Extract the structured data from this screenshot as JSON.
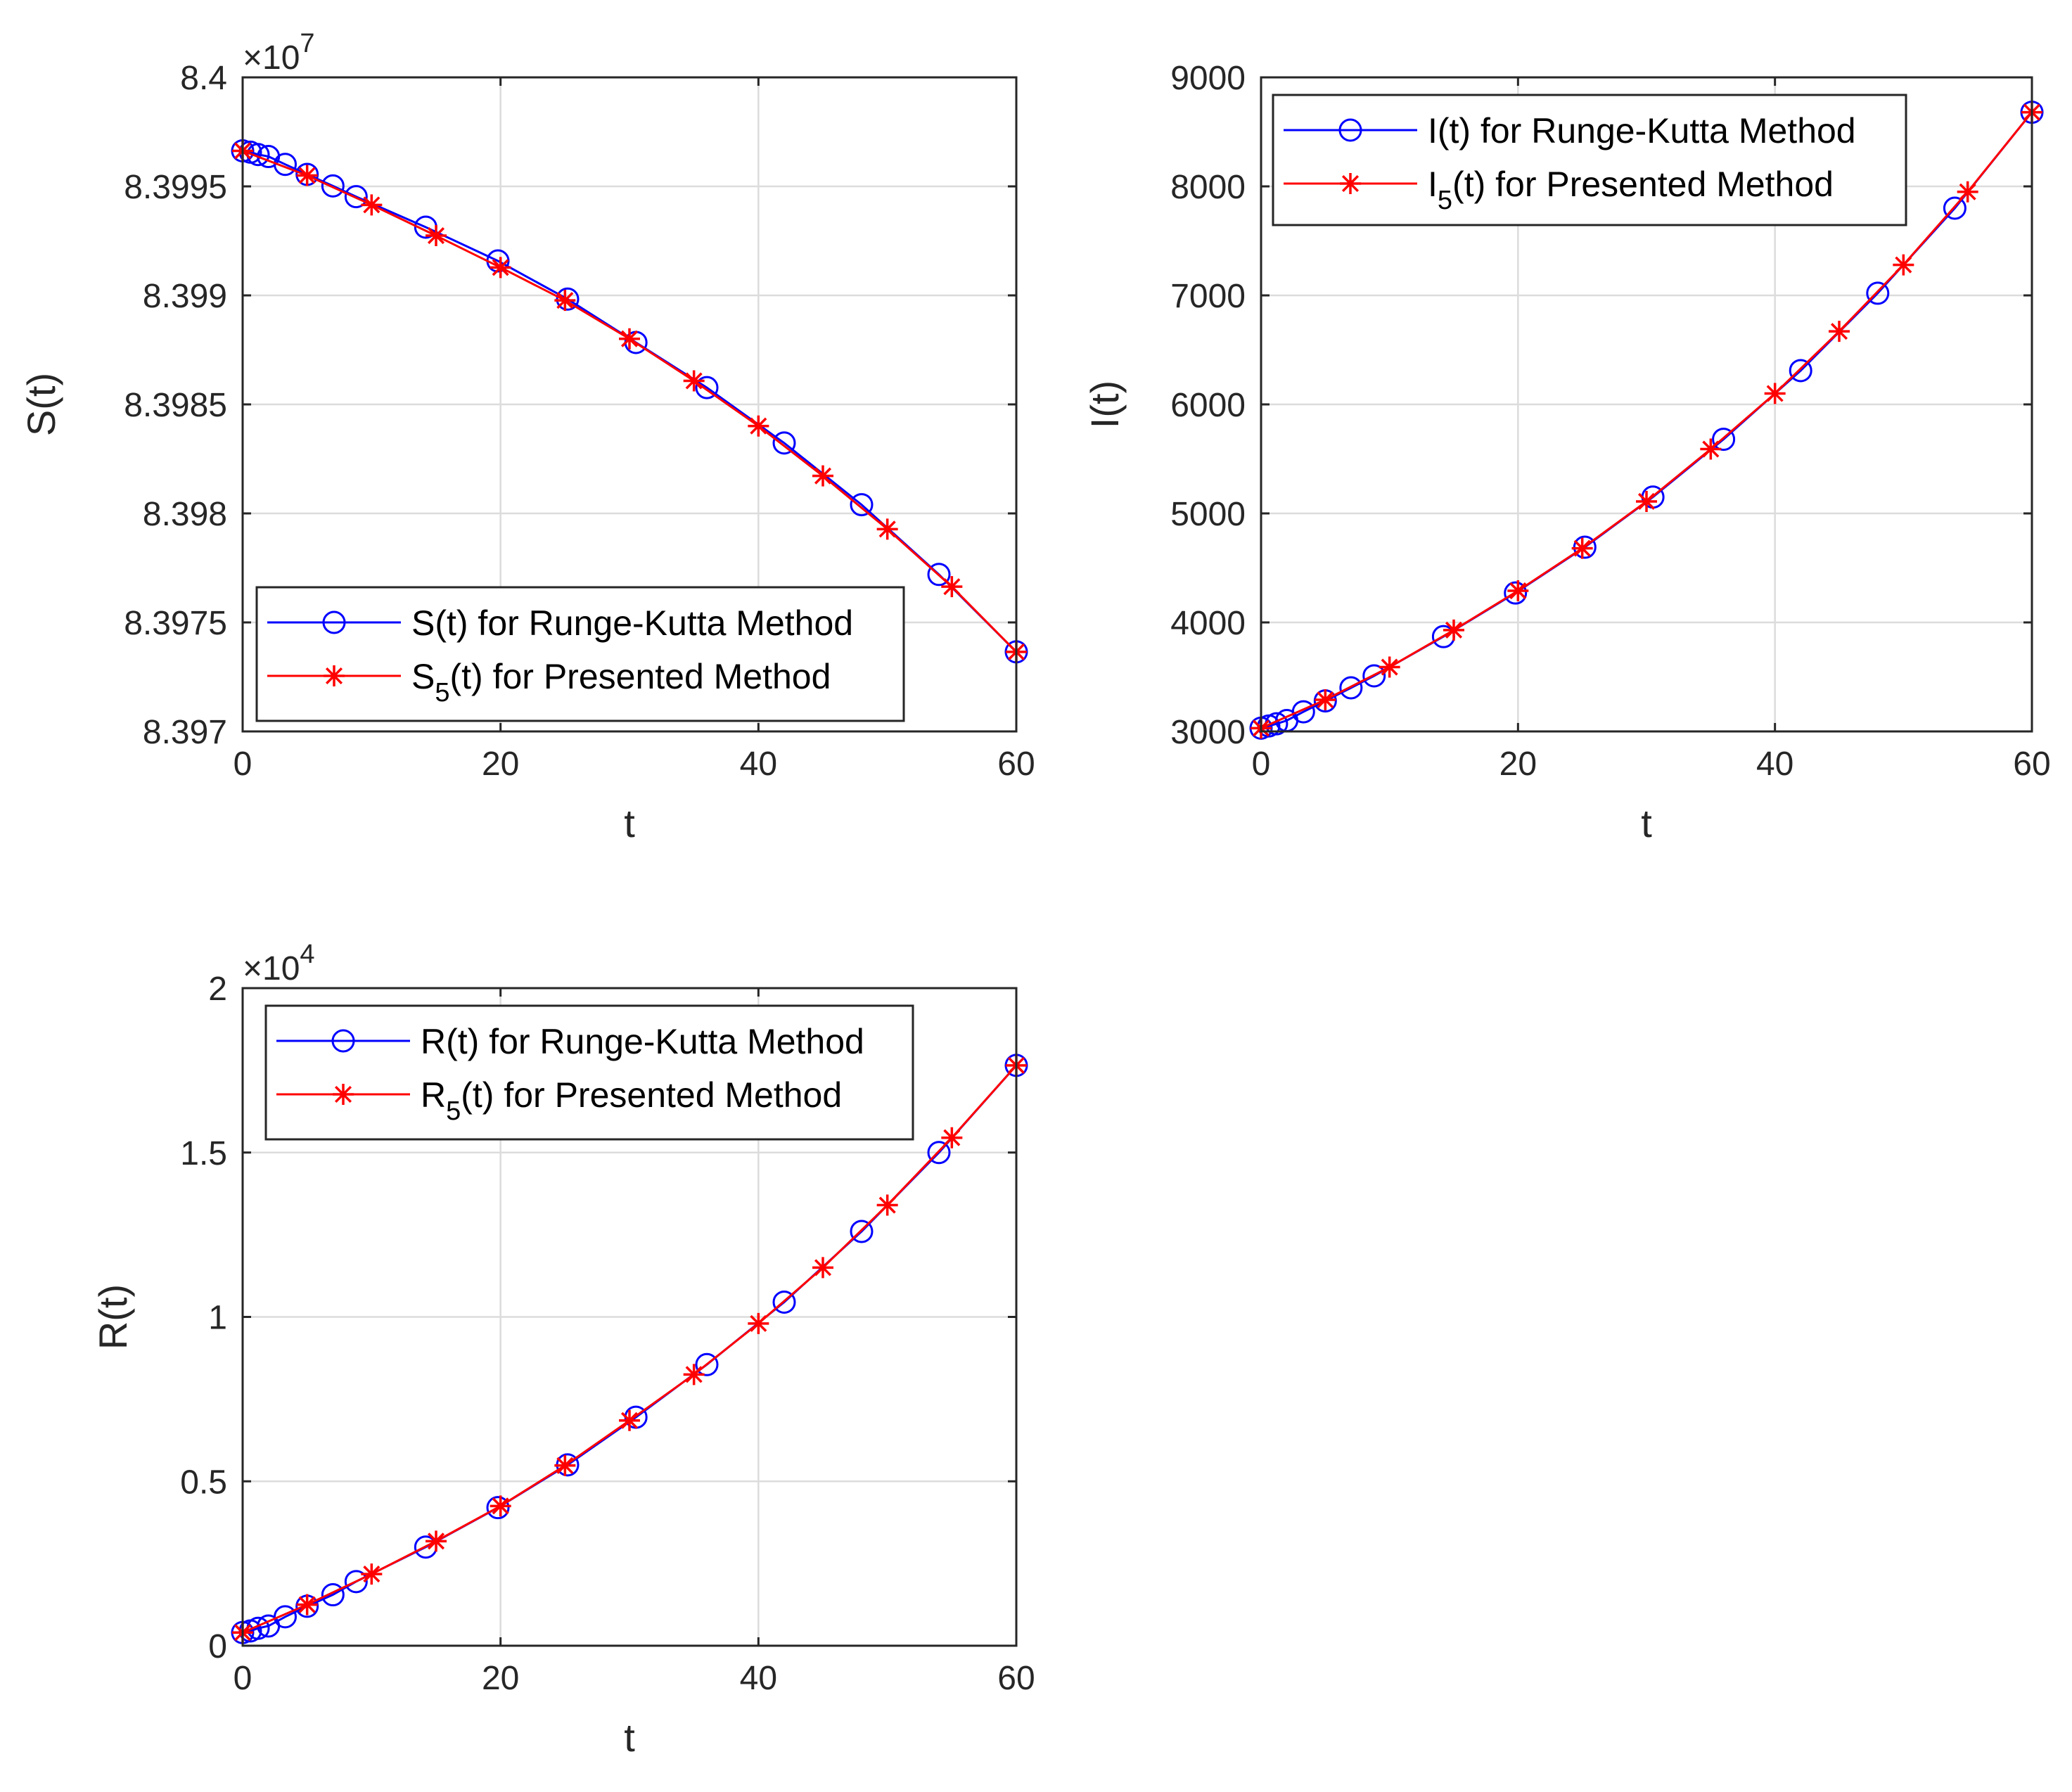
{
  "chart_data": [
    {
      "type": "line",
      "name": "s",
      "xlabel": "t",
      "ylabel": "S(t)",
      "xlim": [
        0,
        60
      ],
      "ylim": [
        83970000,
        84000000
      ],
      "xticks": [
        0,
        20,
        40,
        60
      ],
      "xtick_labels": [
        "0",
        "20",
        "40",
        "60"
      ],
      "yticks": [
        83970000,
        83975000,
        83980000,
        83985000,
        83990000,
        83995000,
        84000000
      ],
      "ytick_labels": [
        "8.397",
        "8.3975",
        "8.398",
        "8.3985",
        "8.399",
        "8.3995",
        "8.4"
      ],
      "multiplier": {
        "base": "×10",
        "exp": "7"
      },
      "legend_position": "bottom-left",
      "series": [
        {
          "name": "S(t) for Runge-Kutta Method",
          "label_main": "S(t) for Runge-Kutta Method",
          "color": "#0000ff",
          "marker": "circle",
          "x": [
            0,
            0.6,
            1.2,
            2.0,
            3.3,
            5.0,
            7.0,
            8.8,
            14.2,
            19.8,
            25.2,
            30.5,
            36.0,
            42.0,
            48.0,
            54.0,
            60.0
          ],
          "y": [
            83996630,
            83996570,
            83996460,
            83996370,
            83996010,
            83995550,
            83995020,
            83994530,
            83993130,
            83991580,
            83989830,
            83987840,
            83985770,
            83983230,
            83980400,
            83977200,
            83973650
          ]
        },
        {
          "name": "S5(t) for Presented Method",
          "label_main": "S",
          "label_sub": "5",
          "label_rest": "(t) for Presented Method",
          "color": "#ff0000",
          "marker": "star",
          "x": [
            0,
            5,
            10,
            15,
            20,
            25,
            30,
            35,
            40,
            45,
            50,
            55,
            60
          ],
          "y": [
            83996630,
            83995500,
            83994150,
            83992740,
            83991280,
            83989770,
            83988010,
            83986080,
            83984010,
            83981720,
            83979280,
            83976640,
            83973650
          ]
        }
      ]
    },
    {
      "type": "line",
      "name": "i",
      "xlabel": "t",
      "ylabel": "I(t)",
      "xlim": [
        0,
        60
      ],
      "ylim": [
        3000,
        9000
      ],
      "xticks": [
        0,
        20,
        40,
        60
      ],
      "xtick_labels": [
        "0",
        "20",
        "40",
        "60"
      ],
      "yticks": [
        3000,
        4000,
        5000,
        6000,
        7000,
        8000,
        9000
      ],
      "ytick_labels": [
        "3000",
        "4000",
        "5000",
        "6000",
        "7000",
        "8000",
        "9000"
      ],
      "legend_position": "top-left",
      "series": [
        {
          "name": "I(t) for Runge-Kutta Method",
          "label_main": "I(t) for Runge-Kutta Method",
          "color": "#0000ff",
          "marker": "circle",
          "x": [
            0,
            0.6,
            1.2,
            2.0,
            3.3,
            5.0,
            7.0,
            8.8,
            14.2,
            19.8,
            25.2,
            30.5,
            36.0,
            42.0,
            48.0,
            54.0,
            60.0
          ],
          "y": [
            3030,
            3050,
            3070,
            3100,
            3180,
            3280,
            3400,
            3510,
            3870,
            4270,
            4690,
            5150,
            5680,
            6310,
            7020,
            7800,
            8680
          ]
        },
        {
          "name": "I5(t) for Presented Method",
          "label_main": "I",
          "label_sub": "5",
          "label_rest": "(t) for Presented Method",
          "color": "#ff0000",
          "marker": "star",
          "x": [
            0,
            5,
            10,
            15,
            20,
            25,
            30,
            35,
            40,
            45,
            50,
            55,
            60
          ],
          "y": [
            3030,
            3290,
            3590,
            3930,
            4290,
            4680,
            5110,
            5590,
            6100,
            6670,
            7280,
            7950,
            8680
          ]
        }
      ]
    },
    {
      "type": "line",
      "name": "r",
      "xlabel": "t",
      "ylabel": "R(t)",
      "xlim": [
        0,
        60
      ],
      "ylim": [
        0,
        20000
      ],
      "xticks": [
        0,
        20,
        40,
        60
      ],
      "xtick_labels": [
        "0",
        "20",
        "40",
        "60"
      ],
      "yticks": [
        0,
        5000,
        10000,
        15000,
        20000
      ],
      "ytick_labels": [
        "0",
        "0.5",
        "1",
        "1.5",
        "2"
      ],
      "multiplier": {
        "base": "×10",
        "exp": "4"
      },
      "legend_position": "top-left",
      "series": [
        {
          "name": "R(t) for Runge-Kutta Method",
          "label_main": "R(t) for Runge-Kutta Method",
          "color": "#0000ff",
          "marker": "circle",
          "x": [
            0,
            0.6,
            1.2,
            2.0,
            3.3,
            5.0,
            7.0,
            8.8,
            14.2,
            19.8,
            25.2,
            30.5,
            36.0,
            42.0,
            48.0,
            54.0,
            60.0
          ],
          "y": [
            400,
            450,
            530,
            600,
            880,
            1200,
            1550,
            1950,
            3000,
            4200,
            5500,
            6950,
            8550,
            10450,
            12600,
            15000,
            17650
          ]
        },
        {
          "name": "R5(t) for Presented Method",
          "label_main": "R",
          "label_sub": "5",
          "label_rest": "(t) for Presented Method",
          "color": "#ff0000",
          "marker": "star",
          "x": [
            0,
            5,
            10,
            15,
            20,
            25,
            30,
            35,
            40,
            45,
            50,
            55,
            60
          ],
          "y": [
            400,
            1250,
            2180,
            3180,
            4250,
            5480,
            6850,
            8250,
            9800,
            11500,
            13400,
            15450,
            17650
          ]
        }
      ]
    }
  ]
}
